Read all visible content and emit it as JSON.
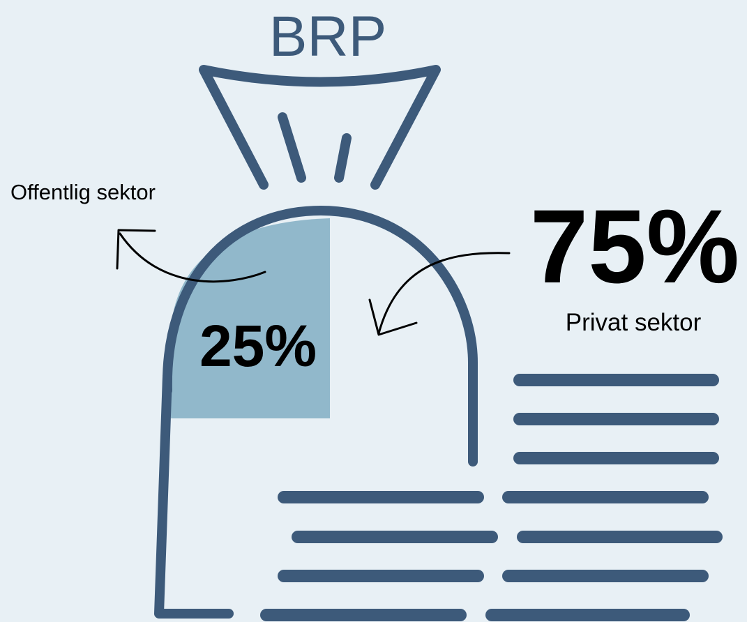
{
  "title": "BRP",
  "public": {
    "label": "Offentlig sektor",
    "share": "25%"
  },
  "private": {
    "label": "Privat sektor",
    "share": "75%"
  }
}
